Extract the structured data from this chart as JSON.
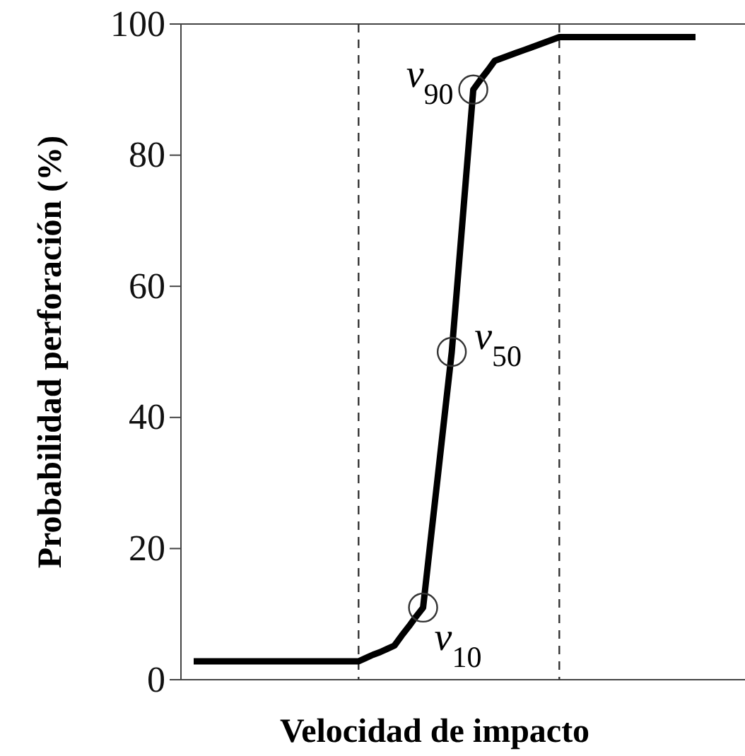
{
  "chart_data": {
    "type": "line",
    "xlabel": "Velocidad de impacto",
    "ylabel": "Probabilidad perforación (%)",
    "categories": [
      null,
      null,
      null,
      null,
      null,
      null,
      null,
      null,
      null,
      null,
      null,
      null,
      null,
      null,
      null,
      null,
      null,
      null,
      null,
      null,
      null,
      null,
      null,
      null,
      null,
      null,
      null,
      null,
      null,
      null,
      null,
      null,
      null,
      null,
      null,
      null,
      null,
      null,
      null,
      null,
      null,
      null,
      null,
      null,
      null,
      null,
      null,
      null,
      null,
      null,
      null,
      null,
      null,
      null,
      null,
      null,
      null,
      null,
      null,
      null,
      null,
      null,
      null,
      null,
      null,
      null,
      null,
      null,
      null,
      null,
      null
    ],
    "ylim": [
      0,
      100
    ],
    "yticks": [
      0,
      20,
      40,
      60,
      80,
      100
    ],
    "tick_labels": "y",
    "grid": false,
    "line_style": "solid",
    "series": [
      {
        "color": "#000000",
        "marker": "none",
        "values": [
          2.8,
          2.8,
          2.8,
          2.8,
          2.8,
          2.8,
          2.8,
          2.8,
          2.8,
          2.8,
          2.8,
          2.8,
          2.8,
          2.8,
          2.8,
          2.8,
          2.8,
          2.8,
          2.8,
          2.8,
          2.8,
          2.8,
          2.8,
          2.8,
          3.3,
          3.8,
          4.2,
          4.7,
          5.2,
          6.7,
          8.1,
          9.6,
          11,
          20.8,
          30.5,
          40.3,
          50,
          63.3,
          76.7,
          90,
          91.5,
          92.9,
          94.4,
          94.8,
          95.2,
          95.6,
          96,
          96.4,
          96.8,
          97.2,
          97.6,
          98,
          98,
          98,
          98,
          98,
          98,
          98,
          98,
          98,
          98,
          98,
          98,
          98,
          98,
          98,
          98,
          98,
          98,
          98,
          98
        ]
      },
      {
        "type": "scatter",
        "color": "#333333",
        "marker": "circle",
        "values": [
          null,
          null,
          null,
          null,
          null,
          null,
          null,
          null,
          null,
          null,
          null,
          null,
          null,
          null,
          null,
          null,
          null,
          null,
          null,
          null,
          null,
          null,
          null,
          null,
          null,
          null,
          null,
          null,
          null,
          null,
          null,
          null,
          11,
          null,
          null,
          null,
          50,
          null,
          null,
          90,
          null,
          null,
          null,
          null,
          null,
          null,
          null,
          null,
          null,
          null,
          null,
          null,
          null,
          null,
          null,
          null,
          null,
          null,
          null,
          null,
          null,
          null,
          null,
          null,
          null,
          null,
          null,
          null,
          null,
          null,
          null
        ]
      }
    ],
    "annotations": [
      "v$_{10}$",
      "v$_{50}$",
      "v$_{90}$"
    ]
  }
}
